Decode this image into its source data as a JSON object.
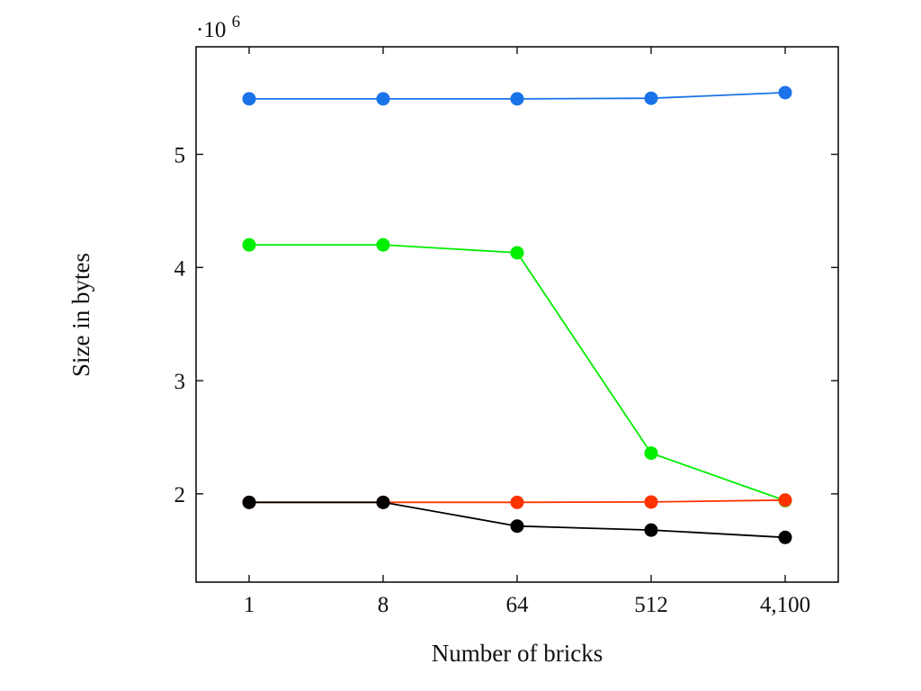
{
  "chart_data": {
    "type": "line",
    "title": "",
    "xlabel": "Number of bricks",
    "ylabel": "Size in bytes",
    "y_multiplier_label": "·10",
    "y_multiplier_exponent": "6",
    "x_scale": "log",
    "x": [
      1,
      8,
      64,
      512,
      4100
    ],
    "x_tick_labels": [
      "1",
      "8",
      "64",
      "512",
      "4,100"
    ],
    "y_ticks": [
      2,
      3,
      4,
      5
    ],
    "y_tick_labels": [
      "2",
      "3",
      "4",
      "5"
    ],
    "ylim": [
      1.22,
      5.95
    ],
    "grid": false,
    "legend": "none",
    "series": [
      {
        "color": "#1a73e8",
        "values": [
          5.49,
          5.49,
          5.49,
          5.495,
          5.545
        ]
      },
      {
        "color": "#00ee00",
        "values": [
          4.2,
          4.2,
          4.13,
          2.36,
          1.94
        ]
      },
      {
        "color": "#ff3300",
        "values": [
          1.925,
          1.925,
          1.925,
          1.928,
          1.945
        ]
      },
      {
        "color": "#000000",
        "values": [
          1.925,
          1.925,
          1.715,
          1.68,
          1.615
        ]
      }
    ]
  }
}
